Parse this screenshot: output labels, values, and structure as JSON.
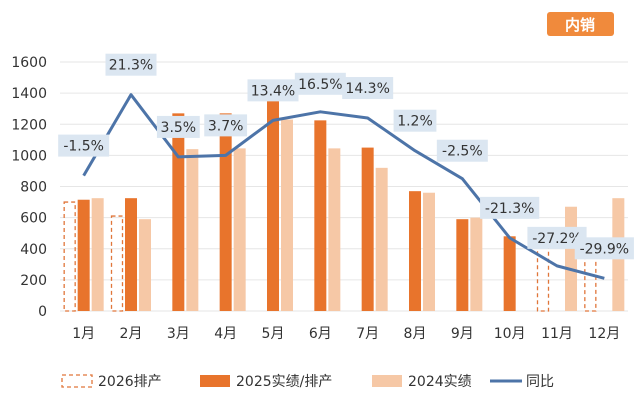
{
  "tag": "内销",
  "chart_data": {
    "type": "bar",
    "categories": [
      "1月",
      "2月",
      "3月",
      "4月",
      "5月",
      "6月",
      "7月",
      "8月",
      "9月",
      "10月",
      "11月",
      "12月"
    ],
    "ylim": [
      0,
      1600
    ],
    "yticks": [
      "0",
      "200",
      "400",
      "600",
      "800",
      "1000",
      "1200",
      "1400",
      "1600"
    ],
    "series": [
      {
        "name": "2026排产",
        "kind": "bar-dashed",
        "color": "#e0763a",
        "values": [
          700,
          610,
          null,
          null,
          null,
          null,
          null,
          null,
          null,
          null,
          490,
          380
        ]
      },
      {
        "name": "2025实绩/排产",
        "kind": "bar",
        "color": "#e8742c",
        "values": [
          715,
          725,
          1270,
          1270,
          1405,
          1225,
          1050,
          770,
          590,
          480,
          null,
          null
        ]
      },
      {
        "name": "2024实绩",
        "kind": "bar",
        "color": "#f6c8a6",
        "values": [
          725,
          590,
          1040,
          1045,
          1230,
          1045,
          920,
          760,
          600,
          null,
          670,
          725
        ]
      },
      {
        "name": "同比",
        "kind": "line",
        "color": "#4d74a8",
        "values": [
          870,
          1390,
          990,
          1000,
          1225,
          1280,
          1240,
          1030,
          850,
          470,
          290,
          210
        ],
        "labels": [
          "-1.5%",
          "21.3%",
          "3.5%",
          "3.7%",
          "13.4%",
          "16.5%",
          "14.3%",
          "1.2%",
          "-2.5%",
          "-21.3%",
          "-27.2%",
          "-29.9%"
        ]
      }
    ],
    "legend_position": "bottom",
    "grid": true
  }
}
